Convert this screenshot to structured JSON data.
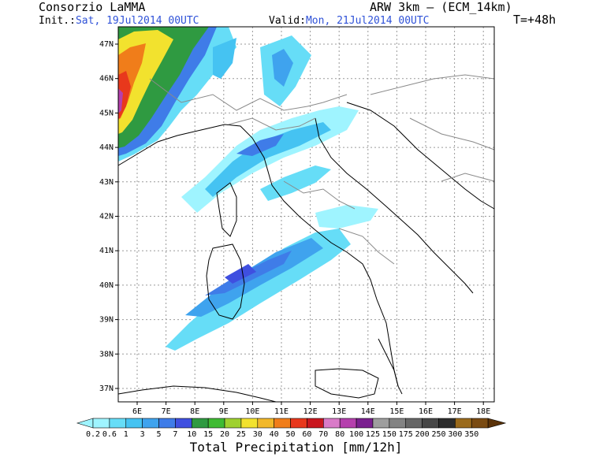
{
  "header": {
    "org": "Consorzio LaMMA",
    "model": "ARW 3km – (ECM_14km)",
    "init_label": "Init.:",
    "init_value": "Sat, 19Jul2014 00UTC",
    "valid_label": "Valid:",
    "valid_value": "Mon, 21Jul2014 00UTC",
    "lead": "T=+48h"
  },
  "map": {
    "lat_labels": [
      "47N",
      "46N",
      "45N",
      "44N",
      "43N",
      "42N",
      "41N",
      "40N",
      "39N",
      "38N",
      "37N"
    ],
    "lon_labels": [
      "6E",
      "7E",
      "8E",
      "9E",
      "10E",
      "11E",
      "12E",
      "13E",
      "14E",
      "15E",
      "16E",
      "17E",
      "18E"
    ]
  },
  "colorbar": {
    "title": "Total Precipitation [mm/12h]",
    "labels": [
      "0.2",
      "0.6",
      "1",
      "3",
      "5",
      "7",
      "10",
      "15",
      "20",
      "25",
      "30",
      "40",
      "50",
      "60",
      "70",
      "80",
      "100",
      "125",
      "150",
      "175",
      "200",
      "250",
      "300",
      "350"
    ],
    "colors": [
      "#9ff4ff",
      "#66ddf7",
      "#45c3f2",
      "#3fa3ee",
      "#3f7ce8",
      "#3f4fe0",
      "#2f9a41",
      "#3fbb33",
      "#9fd12f",
      "#f2e22e",
      "#f2b82a",
      "#f07d1a",
      "#e8381c",
      "#c9161e",
      "#d97bc8",
      "#b53fad",
      "#7a1f8f",
      "#9e9e9e",
      "#838383",
      "#666666",
      "#474747",
      "#2d2d2d",
      "#9a6a1c",
      "#7a4b12",
      "#5a3208"
    ]
  }
}
